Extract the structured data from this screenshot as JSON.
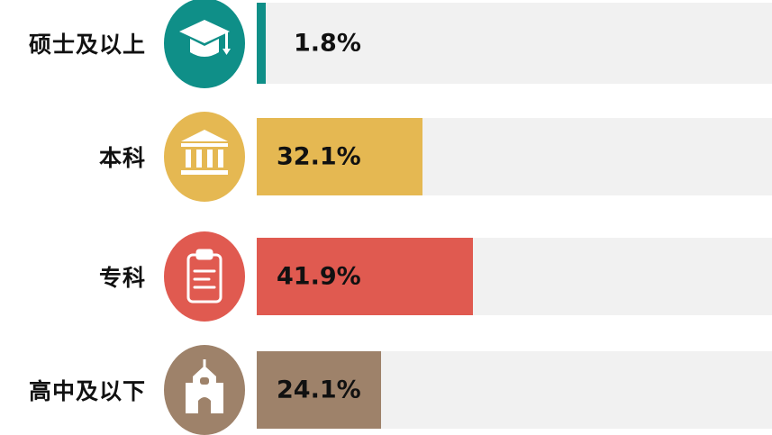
{
  "chart_data": {
    "type": "bar",
    "orientation": "horizontal",
    "categories": [
      "硕士及以上",
      "本科",
      "专科",
      "高中及以下"
    ],
    "values": [
      1.8,
      32.1,
      41.9,
      24.1
    ],
    "value_labels": [
      "1.8%",
      "32.1%",
      "41.9%",
      "24.1%"
    ],
    "unit": "%",
    "xlim": [
      0,
      100
    ],
    "colors": [
      "#0f8f88",
      "#e5b852",
      "#e05a50",
      "#9e826a"
    ],
    "track_color": "#f1f1f1",
    "icons": [
      "graduation-cap-icon",
      "university-building-icon",
      "clipboard-icon",
      "school-building-icon"
    ]
  }
}
